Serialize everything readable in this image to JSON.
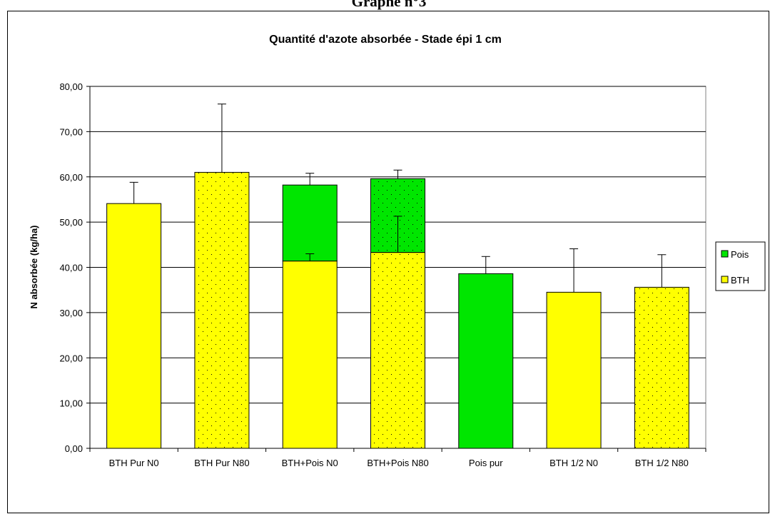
{
  "page_title": "Graphe n°3",
  "chart_data": {
    "type": "stacked_bar",
    "title": "Quantité d'azote absorbée - Stade épi 1 cm",
    "y_label": "N absorbée (kg/ha)",
    "categories": [
      "BTH Pur N0",
      "BTH Pur N80",
      "BTH+Pois N0",
      "BTH+Pois N80",
      "Pois pur",
      "BTH 1/2 N0",
      "BTH 1/2 N80"
    ],
    "dotted": [
      false,
      true,
      false,
      true,
      false,
      false,
      true
    ],
    "series": [
      {
        "name": "BTH",
        "color": "#ffff00",
        "values": [
          54.1,
          61.0,
          41.4,
          43.3,
          null,
          34.5,
          35.6
        ],
        "errors": [
          4.7,
          15.1,
          1.6,
          8.0,
          null,
          9.6,
          7.2
        ]
      },
      {
        "name": "Pois",
        "color": "#00e600",
        "values": [
          null,
          null,
          16.8,
          16.3,
          38.6,
          null,
          null
        ],
        "errors": [
          null,
          null,
          2.6,
          1.9,
          3.8,
          null,
          null
        ]
      }
    ],
    "ylim": [
      0,
      80
    ],
    "yticks": [
      {
        "value": 0,
        "label": "0,00"
      },
      {
        "value": 10,
        "label": "10,00"
      },
      {
        "value": 20,
        "label": "20,00"
      },
      {
        "value": 30,
        "label": "30,00"
      },
      {
        "value": 40,
        "label": "40,00"
      },
      {
        "value": 50,
        "label": "50,00"
      },
      {
        "value": 60,
        "label": "60,00"
      },
      {
        "value": 70,
        "label": "70,00"
      },
      {
        "value": 80,
        "label": "80,00"
      }
    ],
    "grid": true,
    "legend": "right"
  }
}
